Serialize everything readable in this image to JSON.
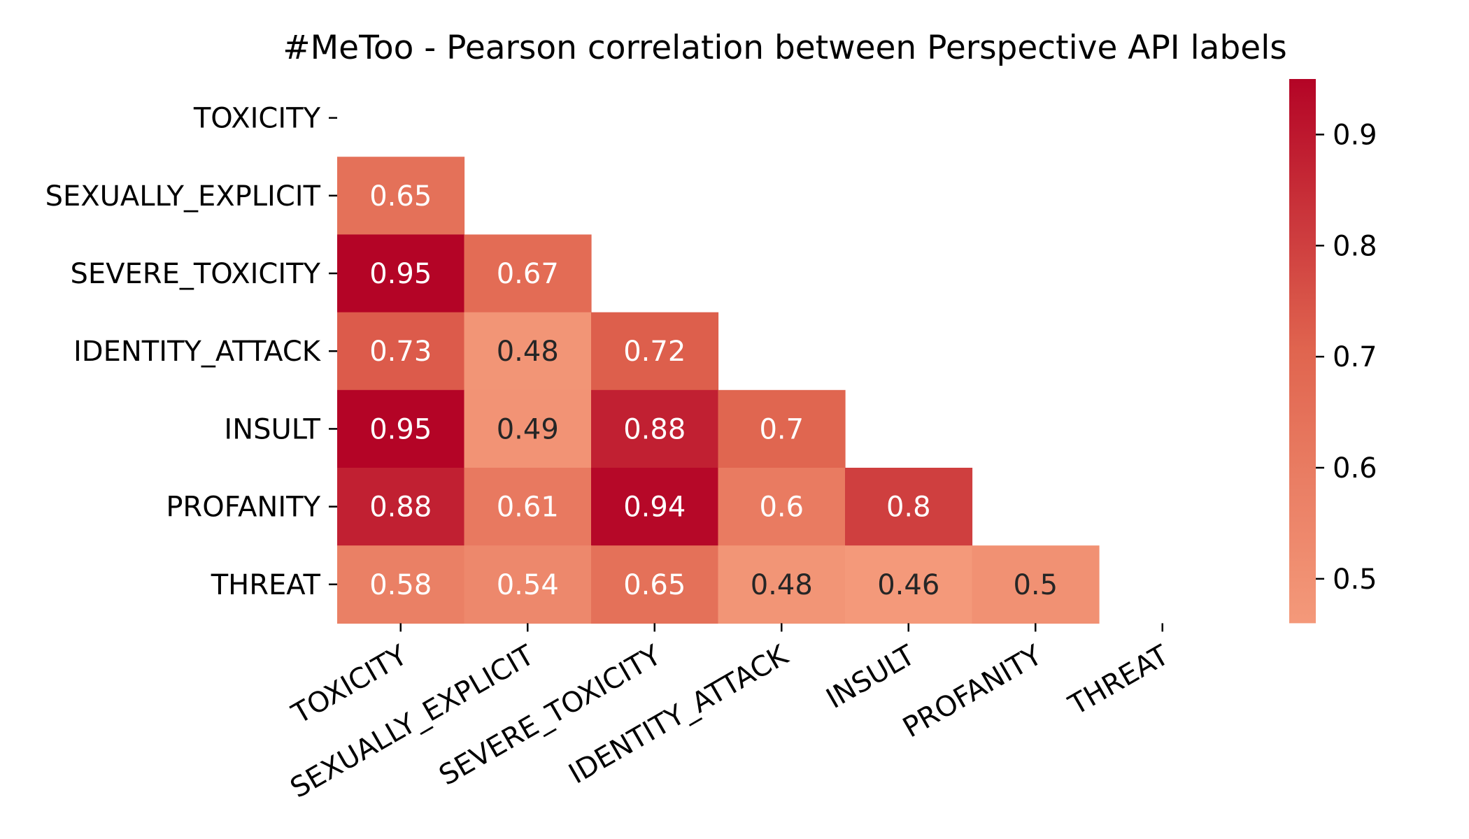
{
  "chart_data": {
    "type": "heatmap",
    "title": "#MeToo - Pearson correlation between Perspective API labels",
    "labels": [
      "TOXICITY",
      "SEXUALLY_EXPLICIT",
      "SEVERE_TOXICITY",
      "IDENTITY_ATTACK",
      "INSULT",
      "PROFANITY",
      "THREAT"
    ],
    "matrix": [
      [
        null,
        null,
        null,
        null,
        null,
        null,
        null
      ],
      [
        0.65,
        null,
        null,
        null,
        null,
        null,
        null
      ],
      [
        0.95,
        0.67,
        null,
        null,
        null,
        null,
        null
      ],
      [
        0.73,
        0.48,
        0.72,
        null,
        null,
        null,
        null
      ],
      [
        0.95,
        0.49,
        0.88,
        0.7,
        null,
        null,
        null
      ],
      [
        0.88,
        0.61,
        0.94,
        0.6,
        0.8,
        null,
        null
      ],
      [
        0.58,
        0.54,
        0.65,
        0.48,
        0.46,
        0.5,
        null
      ]
    ],
    "mask": "upper-triangle-and-diagonal",
    "color_range": [
      0.46,
      0.95
    ],
    "colormap": "coolwarm (upper half)",
    "colors": {
      "low": "#f4997a",
      "mid": "#e0654f",
      "high": "#b40426"
    },
    "colorbar": {
      "ticks": [
        0.5,
        0.6,
        0.7,
        0.8,
        0.9
      ],
      "placement": "right"
    },
    "x_tick_rotation_deg": -30,
    "grid": false
  }
}
